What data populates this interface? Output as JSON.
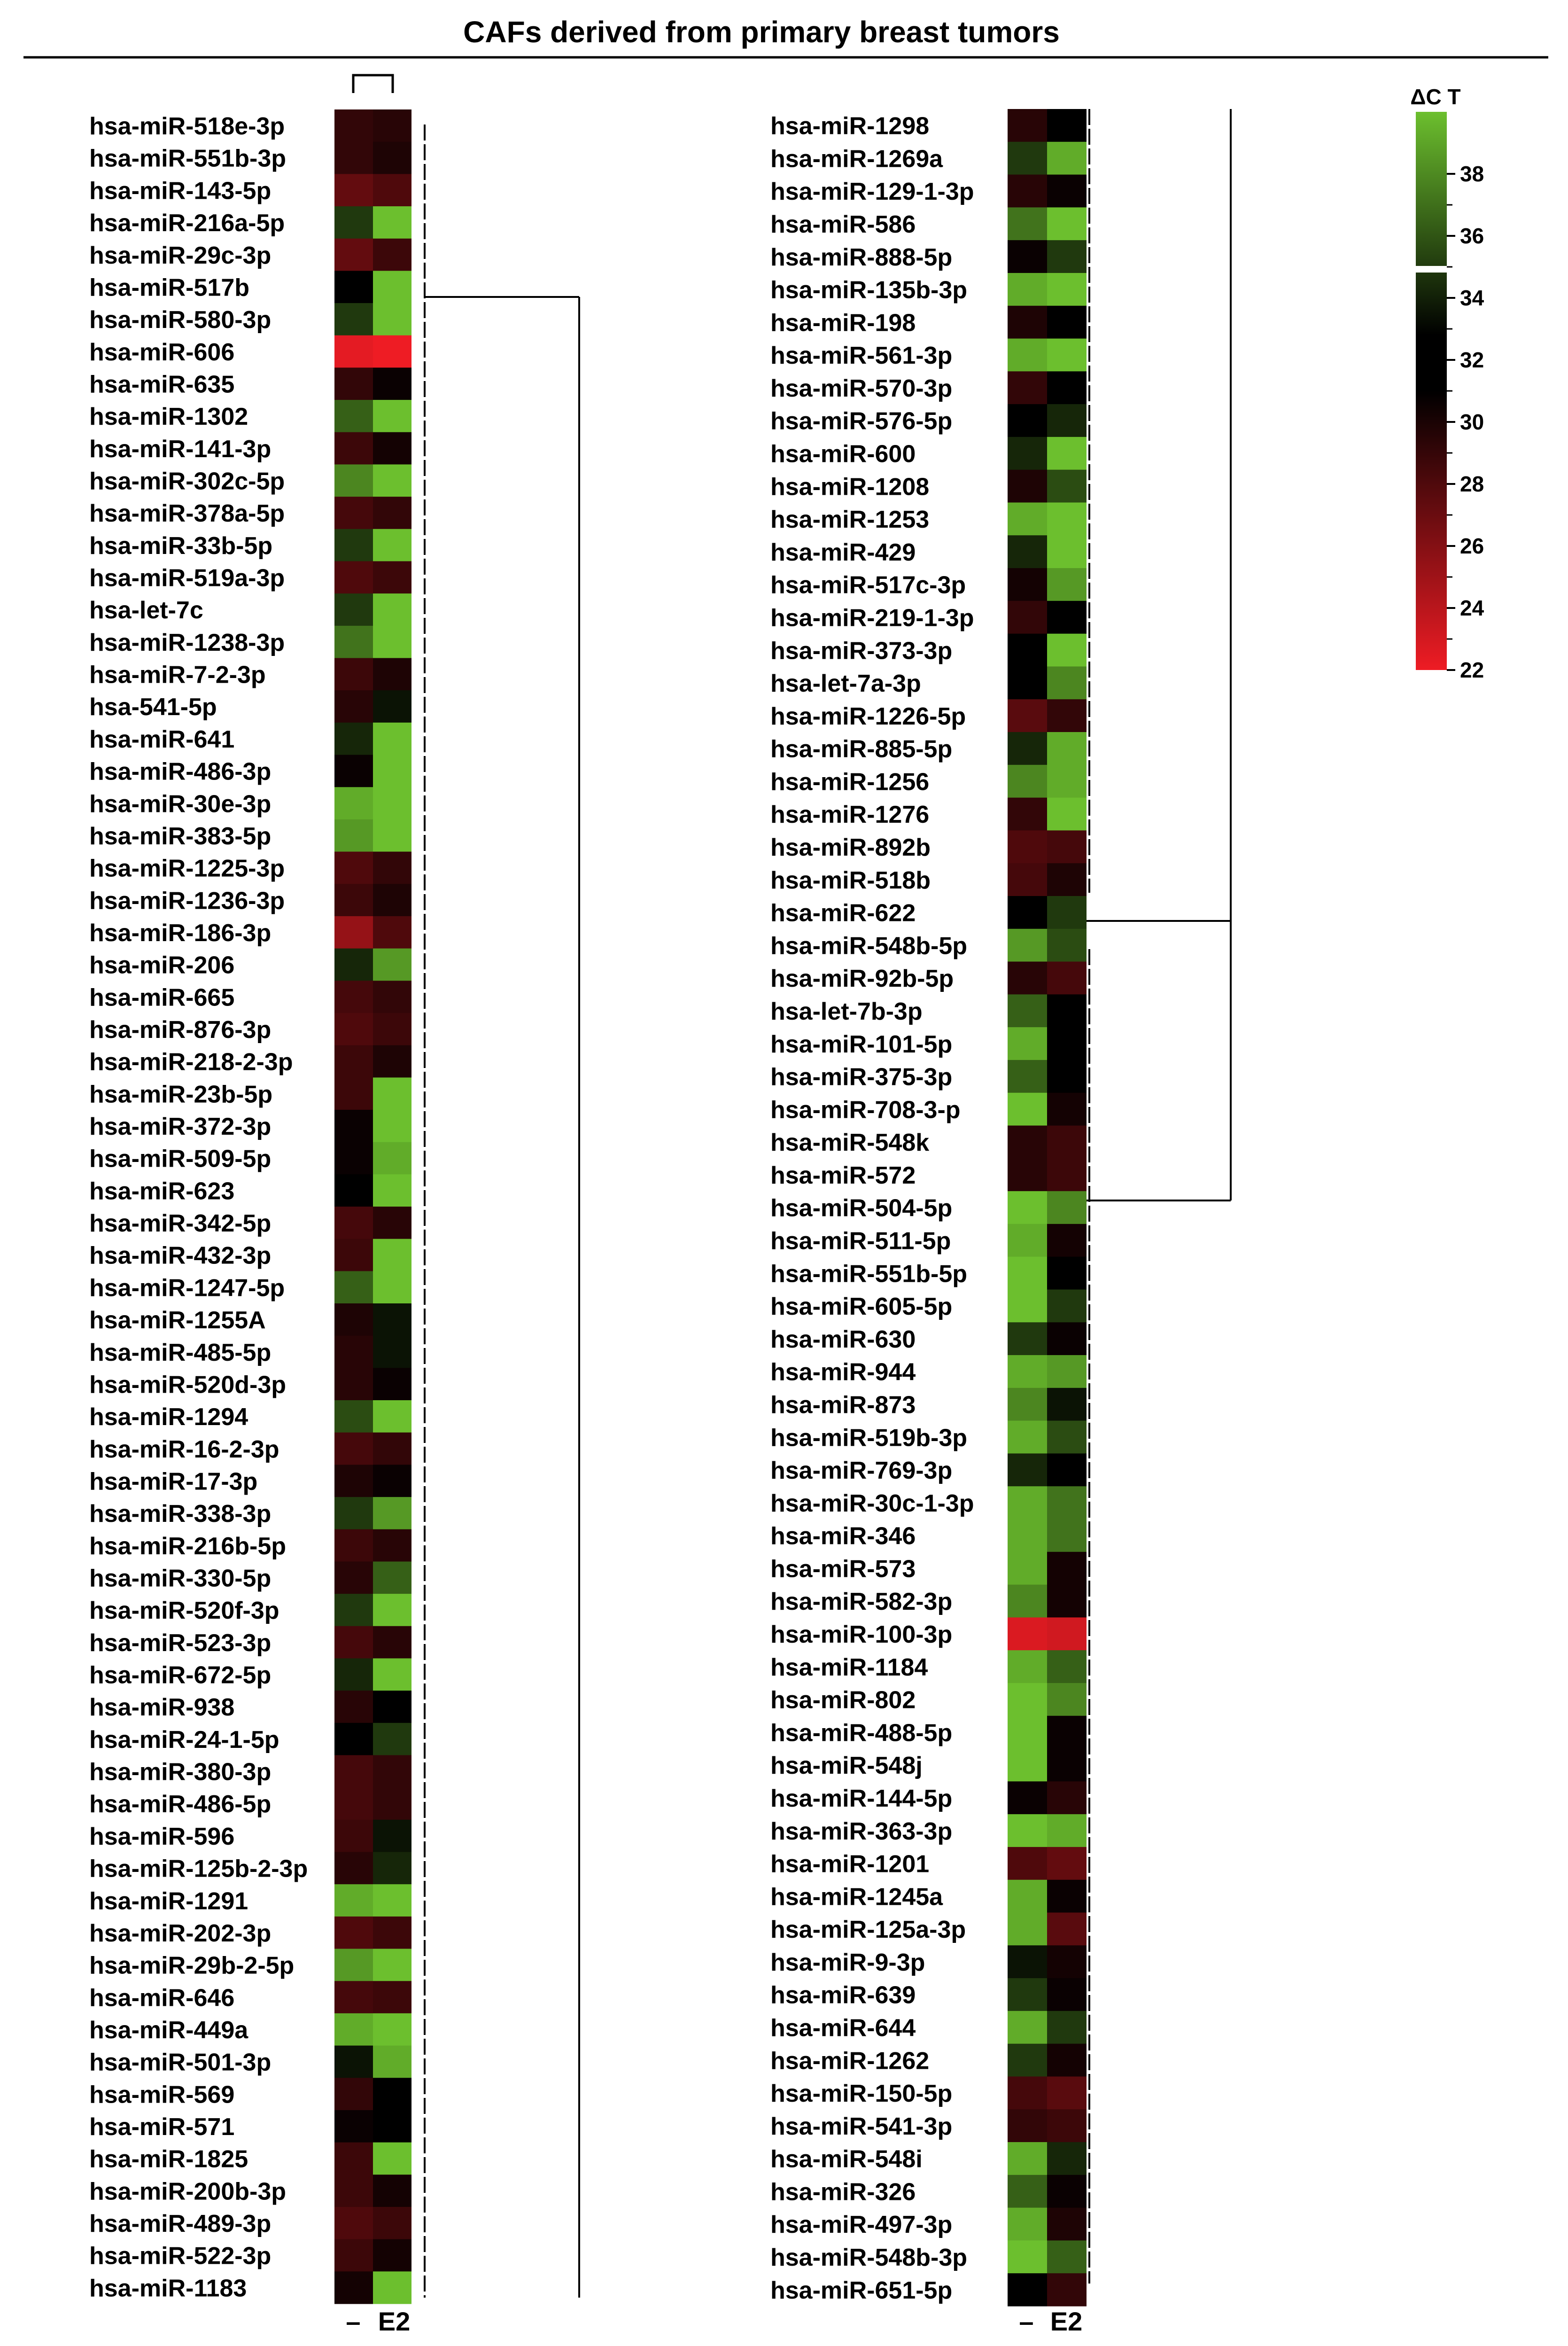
{
  "figure": {
    "title": "CAFs derived from primary breast tumors"
  },
  "chart_data": {
    "type": "heatmap",
    "columns": [
      "–",
      "E2"
    ],
    "colorbar": {
      "label": "ΔC T",
      "ticks": [
        38,
        36,
        34,
        32,
        30,
        28,
        26,
        24,
        22
      ],
      "range": [
        22,
        40
      ],
      "low_color": "#ee1c24",
      "mid_color": "#000000",
      "high_color": "#6cbf2e"
    },
    "panels": [
      {
        "rows": [
          {
            "label": "hsa-miR-518e-3p",
            "values": [
              31.5,
              32.0
            ]
          },
          {
            "label": "hsa-miR-551b-3p",
            "values": [
              31.5,
              32.5
            ]
          },
          {
            "label": "hsa-miR-143-5p",
            "values": [
              29.0,
              30.0
            ]
          },
          {
            "label": "hsa-miR-216a-5p",
            "values": [
              35.5,
              39.0
            ]
          },
          {
            "label": "hsa-miR-29c-3p",
            "values": [
              29.0,
              31.0
            ]
          },
          {
            "label": "hsa-miR-517b",
            "values": [
              34.0,
              39.5
            ]
          },
          {
            "label": "hsa-miR-580-3p",
            "values": [
              35.5,
              39.5
            ]
          },
          {
            "label": "hsa-miR-606",
            "values": [
              22.5,
              22.0
            ]
          },
          {
            "label": "hsa-miR-635",
            "values": [
              31.5,
              33.5
            ]
          },
          {
            "label": "hsa-miR-1302",
            "values": [
              36.5,
              39.0
            ]
          },
          {
            "label": "hsa-miR-141-3p",
            "values": [
              31.0,
              33.0
            ]
          },
          {
            "label": "hsa-miR-302c-5p",
            "values": [
              37.5,
              39.0
            ]
          },
          {
            "label": "hsa-miR-378a-5p",
            "values": [
              30.5,
              31.5
            ]
          },
          {
            "label": "hsa-miR-33b-5p",
            "values": [
              35.5,
              39.0
            ]
          },
          {
            "label": "hsa-miR-519a-3p",
            "values": [
              30.0,
              31.0
            ]
          },
          {
            "label": "hsa-let-7c",
            "values": [
              35.5,
              39.5
            ]
          },
          {
            "label": "hsa-miR-1238-3p",
            "values": [
              37.0,
              39.5
            ]
          },
          {
            "label": "hsa-miR-7-2-3p",
            "values": [
              31.0,
              32.5
            ]
          },
          {
            "label": "hsa-541-5p",
            "values": [
              32.0,
              34.5
            ]
          },
          {
            "label": "hsa-miR-641",
            "values": [
              35.0,
              39.5
            ]
          },
          {
            "label": "hsa-miR-486-3p",
            "values": [
              33.5,
              39.5
            ]
          },
          {
            "label": "hsa-miR-30e-3p",
            "values": [
              38.5,
              39.5
            ]
          },
          {
            "label": "hsa-miR-383-5p",
            "values": [
              38.0,
              39.5
            ]
          },
          {
            "label": "hsa-miR-1225-3p",
            "values": [
              30.0,
              31.5
            ]
          },
          {
            "label": "hsa-miR-1236-3p",
            "values": [
              31.0,
              32.5
            ]
          },
          {
            "label": "hsa-miR-186-3p",
            "values": [
              26.5,
              30.0
            ]
          },
          {
            "label": "hsa-miR-206",
            "values": [
              35.0,
              38.0
            ]
          },
          {
            "label": "hsa-miR-665",
            "values": [
              30.5,
              31.5
            ]
          },
          {
            "label": "hsa-miR-876-3p",
            "values": [
              30.0,
              31.0
            ]
          },
          {
            "label": "hsa-miR-218-2-3p",
            "values": [
              31.0,
              32.5
            ]
          },
          {
            "label": "hsa-miR-23b-5p",
            "values": [
              31.0,
              39.0
            ]
          },
          {
            "label": "hsa-miR-372-3p",
            "values": [
              33.5,
              39.0
            ]
          },
          {
            "label": "hsa-miR-509-5p",
            "values": [
              33.5,
              38.5
            ]
          },
          {
            "label": "hsa-miR-623",
            "values": [
              34.0,
              39.0
            ]
          },
          {
            "label": "hsa-miR-342-5p",
            "values": [
              30.5,
              32.0
            ]
          },
          {
            "label": "hsa-miR-432-3p",
            "values": [
              31.0,
              39.0
            ]
          },
          {
            "label": "hsa-miR-1247-5p",
            "values": [
              36.5,
              39.0
            ]
          },
          {
            "label": "hsa-miR-1255A",
            "values": [
              32.5,
              34.5
            ]
          },
          {
            "label": "hsa-miR-485-5p",
            "values": [
              32.0,
              34.5
            ]
          },
          {
            "label": "hsa-miR-520d-3p",
            "values": [
              32.0,
              33.5
            ]
          },
          {
            "label": "hsa-miR-1294",
            "values": [
              36.0,
              39.0
            ]
          },
          {
            "label": "hsa-miR-16-2-3p",
            "values": [
              30.5,
              31.5
            ]
          },
          {
            "label": "hsa-miR-17-3p",
            "values": [
              32.5,
              33.5
            ]
          },
          {
            "label": "hsa-miR-338-3p",
            "values": [
              35.5,
              38.0
            ]
          },
          {
            "label": "hsa-miR-216b-5p",
            "values": [
              31.0,
              32.0
            ]
          },
          {
            "label": "hsa-miR-330-5p",
            "values": [
              32.0,
              36.5
            ]
          },
          {
            "label": "hsa-miR-520f-3p",
            "values": [
              35.5,
              39.0
            ]
          },
          {
            "label": "hsa-miR-523-3p",
            "values": [
              30.5,
              32.0
            ]
          },
          {
            "label": "hsa-miR-672-5p",
            "values": [
              35.0,
              39.0
            ]
          },
          {
            "label": "hsa-miR-938",
            "values": [
              32.0,
              34.0
            ]
          },
          {
            "label": "hsa-miR-24-1-5p",
            "values": [
              34.0,
              35.5
            ]
          },
          {
            "label": "hsa-miR-380-3p",
            "values": [
              30.5,
              31.5
            ]
          },
          {
            "label": "hsa-miR-486-5p",
            "values": [
              30.5,
              31.5
            ]
          },
          {
            "label": "hsa-miR-596",
            "values": [
              31.0,
              34.5
            ]
          },
          {
            "label": "hsa-miR-125b-2-3p",
            "values": [
              32.0,
              35.0
            ]
          },
          {
            "label": "hsa-miR-1291",
            "values": [
              38.5,
              39.0
            ]
          },
          {
            "label": "hsa-miR-202-3p",
            "values": [
              30.0,
              31.0
            ]
          },
          {
            "label": "hsa-miR-29b-2-5p",
            "values": [
              38.0,
              39.0
            ]
          },
          {
            "label": "hsa-miR-646",
            "values": [
              30.5,
              31.0
            ]
          },
          {
            "label": "hsa-miR-449a",
            "values": [
              38.5,
              39.5
            ]
          },
          {
            "label": "hsa-miR-501-3p",
            "values": [
              34.5,
              38.5
            ]
          },
          {
            "label": "hsa-miR-569",
            "values": [
              31.5,
              34.0
            ]
          },
          {
            "label": "hsa-miR-571",
            "values": [
              33.5,
              34.0
            ]
          },
          {
            "label": "hsa-miR-1825",
            "values": [
              31.0,
              39.5
            ]
          },
          {
            "label": "hsa-miR-200b-3p",
            "values": [
              31.0,
              33.0
            ]
          },
          {
            "label": "hsa-miR-489-3p",
            "values": [
              30.0,
              31.0
            ]
          },
          {
            "label": "hsa-miR-522-3p",
            "values": [
              31.0,
              33.0
            ]
          },
          {
            "label": "hsa-miR-1183",
            "values": [
              33.0,
              39.5
            ]
          }
        ]
      },
      {
        "rows": [
          {
            "label": "hsa-miR-1298",
            "values": [
              32.0,
              34.0
            ]
          },
          {
            "label": "hsa-miR-1269a",
            "values": [
              35.5,
              38.5
            ]
          },
          {
            "label": "hsa-miR-129-1-3p",
            "values": [
              32.0,
              33.5
            ]
          },
          {
            "label": "hsa-miR-586",
            "values": [
              37.0,
              39.0
            ]
          },
          {
            "label": "hsa-miR-888-5p",
            "values": [
              33.5,
              35.5
            ]
          },
          {
            "label": "hsa-miR-135b-3p",
            "values": [
              38.5,
              39.5
            ]
          },
          {
            "label": "hsa-miR-198",
            "values": [
              32.5,
              34.0
            ]
          },
          {
            "label": "hsa-miR-561-3p",
            "values": [
              38.5,
              39.0
            ]
          },
          {
            "label": "hsa-miR-570-3p",
            "values": [
              31.5,
              34.0
            ]
          },
          {
            "label": "hsa-miR-576-5p",
            "values": [
              34.0,
              35.0
            ]
          },
          {
            "label": "hsa-miR-600",
            "values": [
              35.0,
              39.5
            ]
          },
          {
            "label": "hsa-miR-1208",
            "values": [
              32.5,
              36.0
            ]
          },
          {
            "label": "hsa-miR-1253",
            "values": [
              38.5,
              39.5
            ]
          },
          {
            "label": "hsa-miR-429",
            "values": [
              35.0,
              39.5
            ]
          },
          {
            "label": "hsa-miR-517c-3p",
            "values": [
              33.0,
              38.0
            ]
          },
          {
            "label": "hsa-miR-219-1-3p",
            "values": [
              31.5,
              34.0
            ]
          },
          {
            "label": "hsa-miR-373-3p",
            "values": [
              34.0,
              39.5
            ]
          },
          {
            "label": "hsa-let-7a-3p",
            "values": [
              34.0,
              37.5
            ]
          },
          {
            "label": "hsa-miR-1226-5p",
            "values": [
              29.5,
              31.5
            ]
          },
          {
            "label": "hsa-miR-885-5p",
            "values": [
              35.0,
              38.5
            ]
          },
          {
            "label": "hsa-miR-1256",
            "values": [
              37.5,
              38.5
            ]
          },
          {
            "label": "hsa-miR-1276",
            "values": [
              31.5,
              39.0
            ]
          },
          {
            "label": "hsa-miR-892b",
            "values": [
              30.0,
              30.5
            ]
          },
          {
            "label": "hsa-miR-518b",
            "values": [
              30.5,
              32.5
            ]
          },
          {
            "label": "hsa-miR-622",
            "values": [
              34.0,
              35.5
            ]
          },
          {
            "label": "hsa-miR-548b-5p",
            "values": [
              38.0,
              36.0
            ]
          },
          {
            "label": "hsa-miR-92b-5p",
            "values": [
              32.0,
              30.5
            ]
          },
          {
            "label": "hsa-let-7b-3p",
            "values": [
              36.5,
              34.0
            ]
          },
          {
            "label": "hsa-miR-101-5p",
            "values": [
              38.5,
              34.0
            ]
          },
          {
            "label": "hsa-miR-375-3p",
            "values": [
              36.5,
              34.0
            ]
          },
          {
            "label": "hsa-miR-708-3-p",
            "values": [
              39.0,
              33.0
            ]
          },
          {
            "label": "hsa-miR-548k",
            "values": [
              32.0,
              31.0
            ]
          },
          {
            "label": "hsa-miR-572",
            "values": [
              32.0,
              31.0
            ]
          },
          {
            "label": "hsa-miR-504-5p",
            "values": [
              39.0,
              37.5
            ]
          },
          {
            "label": "hsa-miR-511-5p",
            "values": [
              38.5,
              33.0
            ]
          },
          {
            "label": "hsa-miR-551b-5p",
            "values": [
              39.0,
              34.0
            ]
          },
          {
            "label": "hsa-miR-605-5p",
            "values": [
              39.0,
              35.5
            ]
          },
          {
            "label": "hsa-miR-630",
            "values": [
              35.5,
              33.5
            ]
          },
          {
            "label": "hsa-miR-944",
            "values": [
              38.5,
              38.0
            ]
          },
          {
            "label": "hsa-miR-873",
            "values": [
              37.5,
              34.5
            ]
          },
          {
            "label": "hsa-miR-519b-3p",
            "values": [
              38.5,
              36.0
            ]
          },
          {
            "label": "hsa-miR-769-3p",
            "values": [
              35.0,
              34.0
            ]
          },
          {
            "label": "hsa-miR-30c-1-3p",
            "values": [
              38.5,
              37.0
            ]
          },
          {
            "label": "hsa-miR-346",
            "values": [
              38.5,
              37.0
            ]
          },
          {
            "label": "hsa-miR-573",
            "values": [
              38.5,
              33.0
            ]
          },
          {
            "label": "hsa-miR-582-3p",
            "values": [
              37.5,
              33.0
            ]
          },
          {
            "label": "hsa-miR-100-3p",
            "values": [
              23.0,
              23.5
            ]
          },
          {
            "label": "hsa-miR-1184",
            "values": [
              38.5,
              36.5
            ]
          },
          {
            "label": "hsa-miR-802",
            "values": [
              39.5,
              37.5
            ]
          },
          {
            "label": "hsa-miR-488-5p",
            "values": [
              39.5,
              33.5
            ]
          },
          {
            "label": "hsa-miR-548j",
            "values": [
              39.5,
              33.5
            ]
          },
          {
            "label": "hsa-miR-144-5p",
            "values": [
              33.5,
              32.0
            ]
          },
          {
            "label": "hsa-miR-363-3p",
            "values": [
              39.0,
              38.5
            ]
          },
          {
            "label": "hsa-miR-1201",
            "values": [
              30.0,
              29.0
            ]
          },
          {
            "label": "hsa-miR-1245a",
            "values": [
              38.5,
              33.5
            ]
          },
          {
            "label": "hsa-miR-125a-3p",
            "values": [
              38.5,
              29.5
            ]
          },
          {
            "label": "hsa-miR-9-3p",
            "values": [
              34.5,
              33.0
            ]
          },
          {
            "label": "hsa-miR-639",
            "values": [
              35.5,
              33.5
            ]
          },
          {
            "label": "hsa-miR-644",
            "values": [
              38.5,
              35.5
            ]
          },
          {
            "label": "hsa-miR-1262",
            "values": [
              35.5,
              33.0
            ]
          },
          {
            "label": "hsa-miR-150-5p",
            "values": [
              30.5,
              29.5
            ]
          },
          {
            "label": "hsa-miR-541-3p",
            "values": [
              31.5,
              31.0
            ]
          },
          {
            "label": "hsa-miR-548i",
            "values": [
              38.5,
              35.0
            ]
          },
          {
            "label": "hsa-miR-326",
            "values": [
              36.5,
              33.5
            ]
          },
          {
            "label": "hsa-miR-497-3p",
            "values": [
              38.5,
              32.5
            ]
          },
          {
            "label": "hsa-miR-548b-3p",
            "values": [
              39.0,
              36.5
            ]
          },
          {
            "label": "hsa-miR-651-5p",
            "values": [
              34.0,
              31.5
            ]
          }
        ]
      }
    ]
  }
}
